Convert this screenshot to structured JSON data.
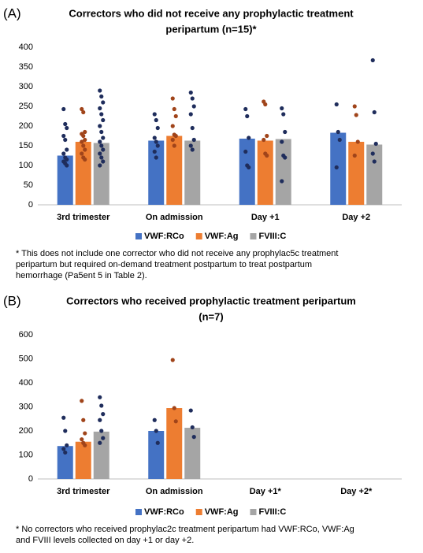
{
  "chart_data": [
    {
      "type": "bar",
      "panel": "(A)",
      "title": [
        "Correctors who did not receive any prophylactic treatment",
        "peripartum (n=15)*"
      ],
      "categories": [
        "3rd trimester",
        "On admission",
        "Day +1",
        "Day +2"
      ],
      "ylim": [
        0,
        400
      ],
      "yticks": [
        0,
        50,
        100,
        150,
        200,
        250,
        300,
        350,
        400
      ],
      "series": [
        {
          "name": "VWF:RCo",
          "color": "#4472c4",
          "point_color": "#1f2d5c",
          "values": [
            125,
            163,
            168,
            183
          ],
          "points": [
            [
              243,
              205,
              195,
              175,
              165,
              140,
              130,
              120,
              115,
              110,
              105,
              100
            ],
            [
              230,
              215,
              195,
              170,
              160,
              150,
              135,
              120
            ],
            [
              243,
              225,
              170,
              135,
              100,
              95
            ],
            [
              255,
              185,
              165,
              95
            ]
          ]
        },
        {
          "name": "VWF:Ag",
          "color": "#ed7d31",
          "point_color": "#a0441a",
          "values": [
            160,
            175,
            163,
            160
          ],
          "points": [
            [
              243,
              235,
              185,
              180,
              175,
              165,
              160,
              150,
              140,
              130,
              120,
              115
            ],
            [
              270,
              243,
              225,
              200,
              178,
              175,
              165,
              150
            ],
            [
              262,
              255,
              175,
              165,
              130,
              125
            ],
            [
              250,
              228,
              160,
              125
            ]
          ]
        },
        {
          "name": "FVIII:C",
          "color": "#a5a5a5",
          "point_color": "#1f2d5c",
          "values": [
            157,
            163,
            167,
            153
          ],
          "points": [
            [
              290,
              275,
              260,
              245,
              230,
              215,
              200,
              185,
              170,
              160,
              150,
              140,
              130,
              120,
              110,
              100
            ],
            [
              285,
              270,
              250,
              230,
              195,
              165,
              150,
              140
            ],
            [
              245,
              230,
              185,
              160,
              125,
              120,
              60
            ],
            [
              367,
              235,
              155,
              130,
              110
            ]
          ]
        }
      ],
      "footnote": [
        "* This does not include one corrector who did not receive any prophylac5c treatment",
        "peripartum but required on-demand treatment postpartum to treat postpartum",
        "hemorrhage (Pa5ent 5 in Table 2)."
      ]
    },
    {
      "type": "bar",
      "panel": "(B)",
      "title": [
        "Correctors who received prophylactic treatment peripartum",
        "(n=7)"
      ],
      "categories": [
        "3rd trimester",
        "On admission",
        "Day +1*",
        "Day +2*"
      ],
      "ylim": [
        0,
        600
      ],
      "yticks": [
        0,
        100,
        200,
        300,
        400,
        500,
        600
      ],
      "series": [
        {
          "name": "VWF:RCo",
          "color": "#4472c4",
          "point_color": "#1f2d5c",
          "values": [
            137,
            200,
            null,
            null
          ],
          "points": [
            [
              255,
              200,
              140,
              125,
              110
            ],
            [
              245,
              200,
              150
            ],
            [],
            []
          ]
        },
        {
          "name": "VWF:Ag",
          "color": "#ed7d31",
          "point_color": "#a0441a",
          "values": [
            155,
            295,
            null,
            null
          ],
          "points": [
            [
              325,
              245,
              190,
              165,
              150,
              140
            ],
            [
              495,
              295,
              240
            ],
            [],
            []
          ]
        },
        {
          "name": "FVIII:C",
          "color": "#a5a5a5",
          "point_color": "#1f2d5c",
          "values": [
            197,
            213,
            null,
            null
          ],
          "points": [
            [
              340,
              305,
              270,
              245,
              200,
              170,
              150
            ],
            [
              285,
              215,
              175
            ],
            [],
            []
          ]
        }
      ],
      "footnote": [
        "* No correctors who received prophylac2c treatment peripartum had VWF:RCo, VWF:Ag",
        "and FVIII levels collected on day +1 or day +2."
      ]
    }
  ]
}
